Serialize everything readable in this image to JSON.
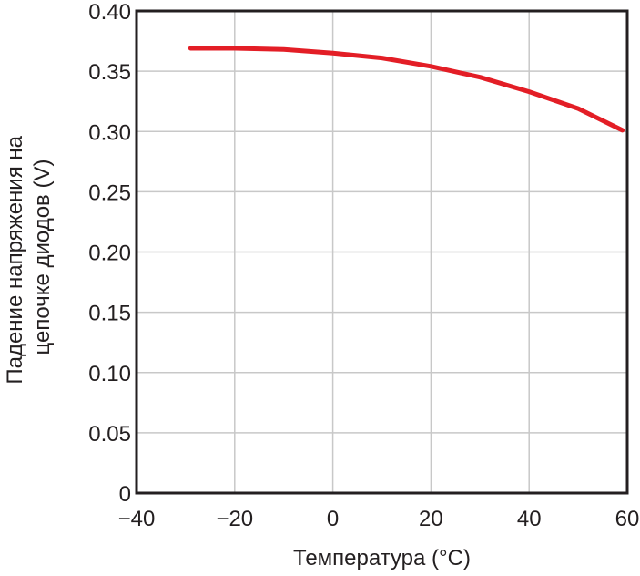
{
  "chart_data": {
    "type": "line",
    "title": "",
    "xlabel": "Температура (°C)",
    "ylabel_lines": [
      "Падение напряжения на",
      "цепочке диодов (V)"
    ],
    "xlim": [
      -40,
      60
    ],
    "ylim": [
      0,
      0.4
    ],
    "x_ticks": [
      {
        "value": -40,
        "label": "−40"
      },
      {
        "value": -20,
        "label": "−20"
      },
      {
        "value": 0,
        "label": "0"
      },
      {
        "value": 20,
        "label": "20"
      },
      {
        "value": 40,
        "label": "40"
      },
      {
        "value": 60,
        "label": "60"
      }
    ],
    "y_ticks": [
      {
        "value": 0,
        "label": "0"
      },
      {
        "value": 0.05,
        "label": "0.05"
      },
      {
        "value": 0.1,
        "label": "0.10"
      },
      {
        "value": 0.15,
        "label": "0.15"
      },
      {
        "value": 0.2,
        "label": "0.20"
      },
      {
        "value": 0.25,
        "label": "0.25"
      },
      {
        "value": 0.3,
        "label": "0.30"
      },
      {
        "value": 0.35,
        "label": "0.35"
      },
      {
        "value": 0.4,
        "label": "0.40"
      }
    ],
    "grid": true,
    "series": [
      {
        "color": "#e31e26",
        "points": [
          {
            "x": -29,
            "y": 0.369
          },
          {
            "x": -20,
            "y": 0.369
          },
          {
            "x": -10,
            "y": 0.368
          },
          {
            "x": 0,
            "y": 0.365
          },
          {
            "x": 10,
            "y": 0.361
          },
          {
            "x": 20,
            "y": 0.354
          },
          {
            "x": 30,
            "y": 0.345
          },
          {
            "x": 40,
            "y": 0.333
          },
          {
            "x": 50,
            "y": 0.319
          },
          {
            "x": 59,
            "y": 0.301
          }
        ]
      }
    ]
  }
}
